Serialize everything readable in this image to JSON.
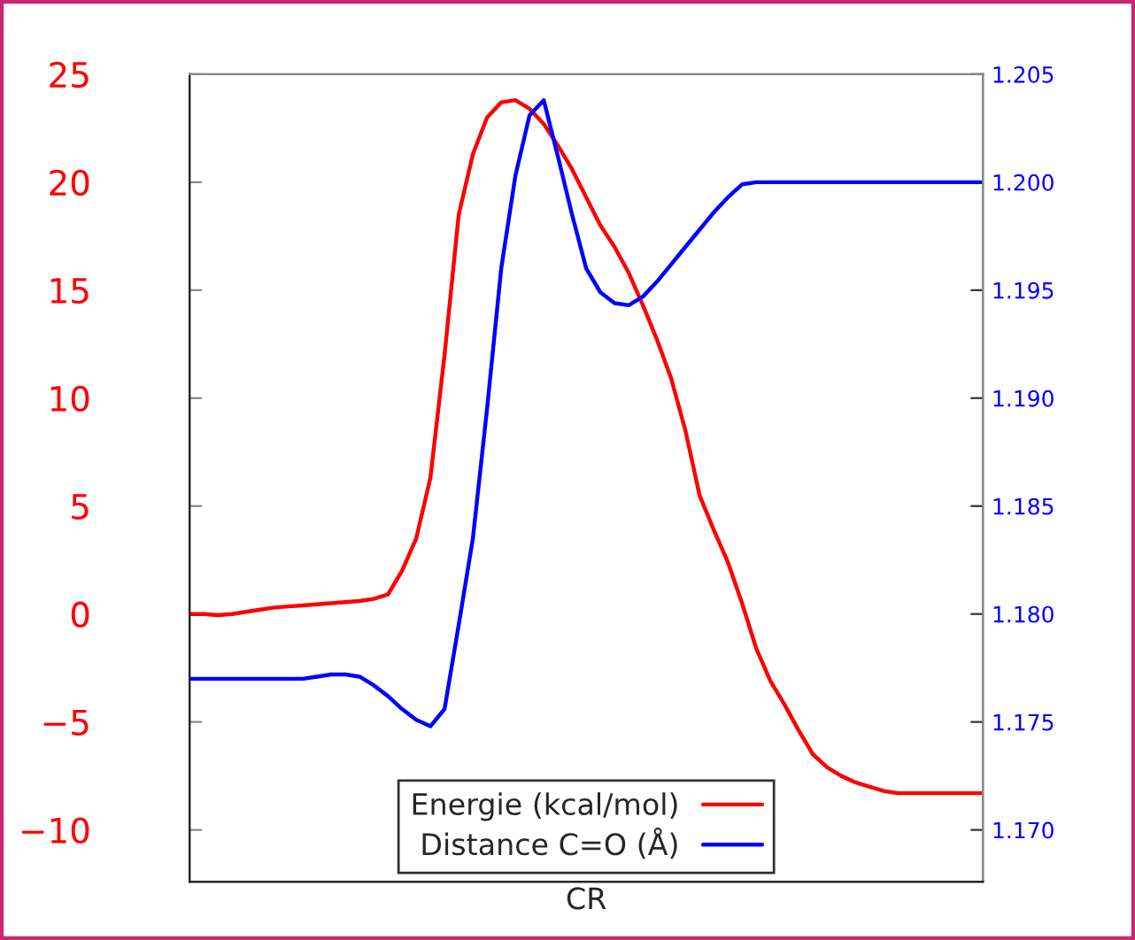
{
  "chart_data": {
    "type": "line",
    "xlabel": "CR",
    "categories": [
      null,
      null,
      null,
      null,
      null,
      null,
      null,
      null,
      null,
      null,
      null,
      null,
      null,
      null,
      null,
      null,
      null,
      null,
      null,
      null,
      null,
      null,
      null,
      null,
      null,
      null,
      null,
      null,
      null,
      null,
      null,
      null,
      null,
      null,
      null,
      null,
      null,
      null,
      null,
      null,
      null,
      null,
      null,
      null,
      null,
      null,
      null,
      null,
      null,
      null,
      null,
      null,
      null,
      null,
      null,
      null,
      null
    ],
    "series": [
      {
        "name": "Energie (kcal/mol)",
        "color": "#ff0000",
        "values": [
          0,
          0,
          -0.05,
          0,
          0.1,
          0.2,
          0.3,
          0.35,
          0.4,
          0.45,
          0.5,
          0.55,
          0.6,
          0.7,
          0.9,
          2,
          3.5,
          6.3,
          12,
          18.5,
          21.3,
          23,
          23.7,
          23.8,
          23.4,
          22.7,
          21.7,
          20.6,
          19.3,
          18,
          17,
          15.8,
          14.3,
          12.7,
          10.9,
          8.5,
          5.5,
          3.9,
          2.4,
          0.5,
          -1.6,
          -3.1,
          -4.2,
          -5.4,
          -6.5,
          -7.1,
          -7.5,
          -7.8,
          -8,
          -8.2,
          -8.3,
          -8.3,
          -8.3,
          -8.3,
          -8.3,
          -8.3,
          -8.3
        ]
      },
      {
        "name": "Distance C=O (Å)",
        "color": "#0000ff",
        "axis": "y2",
        "values": [
          1.177,
          1.177,
          1.177,
          1.177,
          1.177,
          1.177,
          1.177,
          1.177,
          1.177,
          1.1771,
          1.1772,
          1.1772,
          1.1771,
          1.1767,
          1.1762,
          1.1756,
          1.1751,
          1.1748,
          1.1756,
          1.1795,
          1.1835,
          1.1895,
          1.196,
          1.2003,
          1.2031,
          1.2038,
          1.2012,
          1.1985,
          1.196,
          1.1949,
          1.1944,
          1.1943,
          1.1947,
          1.1954,
          1.1962,
          1.197,
          1.1978,
          1.1986,
          1.1993,
          1.1999,
          1.2,
          1.2,
          1.2,
          1.2,
          1.2,
          1.2,
          1.2,
          1.2,
          1.2,
          1.2,
          1.2,
          1.2,
          1.2,
          1.2,
          1.2,
          1.2,
          1.2
        ]
      }
    ],
    "ylim": [
      -12.4,
      25
    ],
    "yticks": [
      {
        "value": -10,
        "label": "−10"
      },
      {
        "value": -5,
        "label": "−5"
      },
      0,
      5,
      10,
      15,
      20,
      25
    ],
    "y2lim": [
      1.1676,
      1.205
    ],
    "y2ticks": [
      {
        "value": 1.17,
        "label": "1.170"
      },
      {
        "value": 1.175,
        "label": "1.175"
      },
      {
        "value": 1.18,
        "label": "1.180"
      },
      {
        "value": 1.185,
        "label": "1.185"
      },
      {
        "value": 1.19,
        "label": "1.190"
      },
      {
        "value": 1.195,
        "label": "1.195"
      },
      {
        "value": 1.2,
        "label": "1.200"
      },
      {
        "value": 1.205,
        "label": "1.205"
      }
    ],
    "legend": "bottom",
    "grid": false,
    "tick_labels": "y"
  }
}
